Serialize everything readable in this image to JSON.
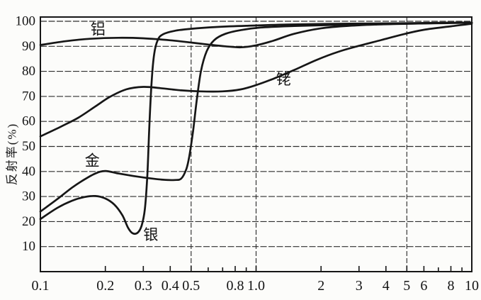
{
  "figure": {
    "background": "#fcfcfa",
    "ink": "#161616",
    "grid_color": "#2e2e2e"
  },
  "chart_data": {
    "type": "line",
    "ylabel": "反射率(%)",
    "xlabel": "",
    "x_scale": "log",
    "xlim": [
      0.1,
      10
    ],
    "ylim": [
      0,
      100
    ],
    "grid": "on",
    "legend": "inline-annotations",
    "y_ticks": [
      {
        "v": 100,
        "label": "100"
      },
      {
        "v": 90,
        "label": "90"
      },
      {
        "v": 80,
        "label": "80"
      },
      {
        "v": 70,
        "label": "70"
      },
      {
        "v": 60,
        "label": "60"
      },
      {
        "v": 50,
        "label": "50"
      },
      {
        "v": 40,
        "label": "40"
      },
      {
        "v": 30,
        "label": "30"
      },
      {
        "v": 20,
        "label": "20"
      },
      {
        "v": 10,
        "label": "10"
      }
    ],
    "x_ticks": [
      {
        "v": 0.1,
        "label": "0.1"
      },
      {
        "v": 0.2,
        "label": "0.2"
      },
      {
        "v": 0.3,
        "label": "0.3"
      },
      {
        "v": 0.4,
        "label": "0.4"
      },
      {
        "v": 0.5,
        "label": "0.5"
      },
      {
        "v": 0.6,
        "label": ""
      },
      {
        "v": 0.7,
        "label": ""
      },
      {
        "v": 0.8,
        "label": "0.8"
      },
      {
        "v": 0.9,
        "label": ""
      },
      {
        "v": 1.0,
        "label": "1.0"
      },
      {
        "v": 2,
        "label": "2"
      },
      {
        "v": 3,
        "label": "3"
      },
      {
        "v": 4,
        "label": "4"
      },
      {
        "v": 5,
        "label": "5"
      },
      {
        "v": 6,
        "label": "6"
      },
      {
        "v": 7,
        "label": ""
      },
      {
        "v": 8,
        "label": "8"
      },
      {
        "v": 9,
        "label": ""
      },
      {
        "v": 10,
        "label": "10"
      }
    ],
    "x_gridlines": [
      0.5,
      1.0,
      5
    ],
    "series": [
      {
        "id": "aluminum",
        "label": "铝",
        "label_at": [
          0.185,
          96.8
        ],
        "points": [
          [
            0.1,
            90.5
          ],
          [
            0.13,
            92
          ],
          [
            0.17,
            93
          ],
          [
            0.23,
            93.4
          ],
          [
            0.3,
            93.2
          ],
          [
            0.4,
            92.4
          ],
          [
            0.5,
            91.5
          ],
          [
            0.6,
            90.7
          ],
          [
            0.72,
            90
          ],
          [
            0.85,
            89.6
          ],
          [
            1.0,
            90.4
          ],
          [
            1.2,
            92.2
          ],
          [
            1.5,
            95
          ],
          [
            2.0,
            97.2
          ],
          [
            2.7,
            98.2
          ],
          [
            3.6,
            98.7
          ],
          [
            5,
            99
          ],
          [
            7,
            99.3
          ],
          [
            10,
            99.5
          ]
        ]
      },
      {
        "id": "silver",
        "label": "银",
        "label_at": [
          0.325,
          14.7
        ],
        "points": [
          [
            0.1,
            21
          ],
          [
            0.12,
            25.5
          ],
          [
            0.14,
            28.3
          ],
          [
            0.16,
            29.8
          ],
          [
            0.18,
            30.2
          ],
          [
            0.2,
            29.2
          ],
          [
            0.22,
            26.8
          ],
          [
            0.24,
            22.5
          ],
          [
            0.255,
            17.5
          ],
          [
            0.268,
            15.3
          ],
          [
            0.283,
            15.6
          ],
          [
            0.295,
            18.5
          ],
          [
            0.305,
            25
          ],
          [
            0.313,
            38
          ],
          [
            0.32,
            58
          ],
          [
            0.328,
            76
          ],
          [
            0.337,
            87
          ],
          [
            0.35,
            92.5
          ],
          [
            0.37,
            94.8
          ],
          [
            0.42,
            96.2
          ],
          [
            0.5,
            97
          ],
          [
            0.65,
            97.7
          ],
          [
            0.9,
            98.2
          ],
          [
            1.4,
            98.7
          ],
          [
            2.5,
            99
          ],
          [
            4.5,
            99.2
          ],
          [
            7,
            99.4
          ],
          [
            10,
            99.5
          ]
        ]
      },
      {
        "id": "gold",
        "label": "金",
        "label_at": [
          0.174,
          44.4
        ],
        "points": [
          [
            0.1,
            24
          ],
          [
            0.12,
            29
          ],
          [
            0.14,
            33.5
          ],
          [
            0.16,
            36.8
          ],
          [
            0.18,
            39.2
          ],
          [
            0.2,
            40.2
          ],
          [
            0.23,
            39.2
          ],
          [
            0.27,
            38.2
          ],
          [
            0.32,
            37.3
          ],
          [
            0.37,
            36.7
          ],
          [
            0.42,
            36.6
          ],
          [
            0.45,
            37.2
          ],
          [
            0.475,
            41
          ],
          [
            0.49,
            46
          ],
          [
            0.51,
            56
          ],
          [
            0.53,
            68
          ],
          [
            0.555,
            80
          ],
          [
            0.59,
            88
          ],
          [
            0.64,
            92.5
          ],
          [
            0.72,
            95
          ],
          [
            0.85,
            96.5
          ],
          [
            1.05,
            97.5
          ],
          [
            1.5,
            98.1
          ],
          [
            2.5,
            98.6
          ],
          [
            4.5,
            99
          ],
          [
            7,
            99.2
          ],
          [
            10,
            99.4
          ]
        ]
      },
      {
        "id": "rhodium",
        "label": "铑",
        "label_at": [
          1.34,
          76.7
        ],
        "points": [
          [
            0.1,
            54
          ],
          [
            0.125,
            58
          ],
          [
            0.15,
            61.5
          ],
          [
            0.18,
            66
          ],
          [
            0.21,
            69.8
          ],
          [
            0.25,
            72.8
          ],
          [
            0.3,
            73.8
          ],
          [
            0.36,
            73.3
          ],
          [
            0.45,
            72.4
          ],
          [
            0.55,
            72
          ],
          [
            0.7,
            72
          ],
          [
            0.85,
            72.8
          ],
          [
            1.0,
            74.5
          ],
          [
            1.2,
            77
          ],
          [
            1.5,
            80.5
          ],
          [
            1.9,
            84.5
          ],
          [
            2.4,
            87.8
          ],
          [
            3.0,
            90.2
          ],
          [
            3.8,
            92.5
          ],
          [
            4.8,
            94.8
          ],
          [
            6.0,
            96.6
          ],
          [
            8.0,
            98
          ],
          [
            10,
            99
          ]
        ]
      }
    ]
  }
}
